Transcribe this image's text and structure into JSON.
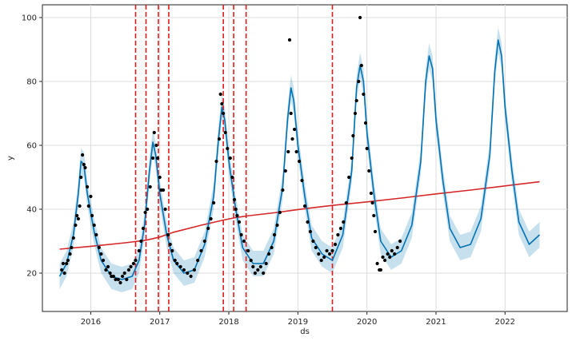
{
  "chart_data": {
    "type": "line",
    "title": "",
    "xlabel": "ds",
    "ylabel": "y",
    "xlim": [
      2015.3,
      2022.9
    ],
    "ylim": [
      8,
      104
    ],
    "grid": true,
    "x_ticks": [
      2016,
      2017,
      2018,
      2019,
      2020,
      2021,
      2022
    ],
    "x_tick_labels": [
      "2016",
      "2017",
      "2018",
      "2019",
      "2020",
      "2021",
      "2022"
    ],
    "y_ticks": [
      20,
      40,
      60,
      80,
      100
    ],
    "y_tick_labels": [
      "20",
      "40",
      "60",
      "80",
      "100"
    ],
    "changepoints": [
      2016.65,
      2016.8,
      2016.98,
      2017.13,
      2017.92,
      2018.07,
      2018.25,
      2019.5
    ],
    "trend": {
      "x": [
        2015.55,
        2016.0,
        2016.5,
        2016.8,
        2017.0,
        2017.2,
        2017.6,
        2017.9,
        2018.1,
        2018.3,
        2018.7,
        2019.0,
        2019.5,
        2020.0,
        2020.5,
        2021.0,
        2021.5,
        2022.0,
        2022.5
      ],
      "y": [
        27.5,
        28.4,
        29.5,
        30.3,
        31.3,
        32.8,
        35.0,
        36.5,
        37.4,
        38.0,
        39.0,
        39.9,
        41.2,
        42.3,
        43.5,
        44.8,
        46.0,
        47.3,
        48.6
      ]
    },
    "forecast": {
      "x": [
        2015.55,
        2015.65,
        2015.75,
        2015.82,
        2015.86,
        2015.9,
        2015.95,
        2016.05,
        2016.15,
        2016.3,
        2016.45,
        2016.6,
        2016.7,
        2016.78,
        2016.85,
        2016.9,
        2016.94,
        2017.0,
        2017.1,
        2017.2,
        2017.35,
        2017.5,
        2017.65,
        2017.78,
        2017.85,
        2017.9,
        2017.94,
        2018.0,
        2018.1,
        2018.2,
        2018.35,
        2018.5,
        2018.65,
        2018.78,
        2018.85,
        2018.9,
        2018.94,
        2019.0,
        2019.1,
        2019.2,
        2019.35,
        2019.5,
        2019.65,
        2019.78,
        2019.85,
        2019.9,
        2019.95,
        2020.0,
        2020.1,
        2020.2,
        2020.35,
        2020.5,
        2020.65,
        2020.78,
        2020.85,
        2020.9,
        2020.95,
        2021.0,
        2021.1,
        2021.2,
        2021.35,
        2021.5,
        2021.65,
        2021.78,
        2021.85,
        2021.9,
        2021.95,
        2022.0,
        2022.1,
        2022.2,
        2022.35,
        2022.5
      ],
      "y": [
        19,
        23,
        32,
        45,
        55,
        54,
        45,
        33,
        24,
        19,
        18,
        19,
        24,
        35,
        52,
        61,
        57,
        45,
        32,
        24,
        20,
        21,
        29,
        44,
        62,
        72,
        68,
        55,
        40,
        28,
        23,
        23,
        30,
        47,
        68,
        78,
        74,
        60,
        44,
        31,
        26,
        24,
        32,
        52,
        78,
        85,
        80,
        64,
        45,
        30,
        25,
        27,
        35,
        55,
        80,
        88,
        84,
        68,
        49,
        34,
        28,
        29,
        37,
        57,
        83,
        93,
        88,
        72,
        52,
        36,
        29,
        32
      ],
      "band": 4
    },
    "observed": [
      [
        2015.58,
        21
      ],
      [
        2015.6,
        23
      ],
      [
        2015.62,
        20
      ],
      [
        2015.65,
        23
      ],
      [
        2015.67,
        24
      ],
      [
        2015.7,
        26
      ],
      [
        2015.72,
        28
      ],
      [
        2015.75,
        31
      ],
      [
        2015.78,
        35
      ],
      [
        2015.8,
        38
      ],
      [
        2015.82,
        37
      ],
      [
        2015.84,
        41
      ],
      [
        2015.86,
        50
      ],
      [
        2015.88,
        57
      ],
      [
        2015.9,
        54
      ],
      [
        2015.92,
        53
      ],
      [
        2015.95,
        47
      ],
      [
        2015.97,
        41
      ],
      [
        2016.0,
        44
      ],
      [
        2016.02,
        38
      ],
      [
        2016.05,
        35
      ],
      [
        2016.08,
        32
      ],
      [
        2016.12,
        28
      ],
      [
        2016.15,
        26
      ],
      [
        2016.18,
        24
      ],
      [
        2016.22,
        21
      ],
      [
        2016.25,
        22
      ],
      [
        2016.28,
        20
      ],
      [
        2016.3,
        19
      ],
      [
        2016.33,
        19
      ],
      [
        2016.36,
        18
      ],
      [
        2016.4,
        18
      ],
      [
        2016.43,
        17
      ],
      [
        2016.46,
        19
      ],
      [
        2016.49,
        20
      ],
      [
        2016.52,
        18
      ],
      [
        2016.55,
        21
      ],
      [
        2016.58,
        22
      ],
      [
        2016.62,
        23
      ],
      [
        2016.65,
        24
      ],
      [
        2016.7,
        27
      ],
      [
        2016.73,
        30
      ],
      [
        2016.76,
        34
      ],
      [
        2016.79,
        39
      ],
      [
        2016.82,
        40
      ],
      [
        2016.86,
        47
      ],
      [
        2016.9,
        56
      ],
      [
        2016.92,
        64
      ],
      [
        2016.95,
        60
      ],
      [
        2016.97,
        56
      ],
      [
        2017.0,
        50
      ],
      [
        2017.02,
        46
      ],
      [
        2017.05,
        46
      ],
      [
        2017.08,
        40
      ],
      [
        2017.12,
        32
      ],
      [
        2017.15,
        29
      ],
      [
        2017.18,
        27
      ],
      [
        2017.22,
        24
      ],
      [
        2017.25,
        23
      ],
      [
        2017.3,
        22
      ],
      [
        2017.35,
        21
      ],
      [
        2017.4,
        20
      ],
      [
        2017.45,
        19
      ],
      [
        2017.5,
        21
      ],
      [
        2017.55,
        24
      ],
      [
        2017.6,
        27
      ],
      [
        2017.65,
        30
      ],
      [
        2017.7,
        34
      ],
      [
        2017.74,
        37
      ],
      [
        2017.78,
        42
      ],
      [
        2017.82,
        55
      ],
      [
        2017.86,
        62
      ],
      [
        2017.88,
        76
      ],
      [
        2017.9,
        73
      ],
      [
        2017.92,
        70
      ],
      [
        2017.95,
        64
      ],
      [
        2017.98,
        59
      ],
      [
        2018.02,
        56
      ],
      [
        2018.05,
        50
      ],
      [
        2018.08,
        43
      ],
      [
        2018.1,
        40
      ],
      [
        2018.12,
        38
      ],
      [
        2018.15,
        36
      ],
      [
        2018.18,
        32
      ],
      [
        2018.22,
        30
      ],
      [
        2018.28,
        27
      ],
      [
        2018.32,
        24
      ],
      [
        2018.35,
        22
      ],
      [
        2018.38,
        20
      ],
      [
        2018.42,
        21
      ],
      [
        2018.46,
        22
      ],
      [
        2018.5,
        20
      ],
      [
        2018.54,
        23
      ],
      [
        2018.58,
        26
      ],
      [
        2018.62,
        28
      ],
      [
        2018.66,
        32
      ],
      [
        2018.7,
        35
      ],
      [
        2018.74,
        39
      ],
      [
        2018.78,
        46
      ],
      [
        2018.82,
        52
      ],
      [
        2018.86,
        58
      ],
      [
        2018.88,
        93
      ],
      [
        2018.9,
        70
      ],
      [
        2018.92,
        62
      ],
      [
        2018.95,
        65
      ],
      [
        2018.98,
        58
      ],
      [
        2019.02,
        55
      ],
      [
        2019.06,
        49
      ],
      [
        2019.1,
        41
      ],
      [
        2019.14,
        36
      ],
      [
        2019.18,
        33
      ],
      [
        2019.22,
        30
      ],
      [
        2019.26,
        28
      ],
      [
        2019.3,
        26
      ],
      [
        2019.34,
        24
      ],
      [
        2019.38,
        25
      ],
      [
        2019.42,
        27
      ],
      [
        2019.46,
        26
      ],
      [
        2019.5,
        27
      ],
      [
        2019.54,
        29
      ],
      [
        2019.58,
        32
      ],
      [
        2019.62,
        34
      ],
      [
        2019.66,
        36
      ],
      [
        2019.7,
        42
      ],
      [
        2019.74,
        50
      ],
      [
        2019.78,
        56
      ],
      [
        2019.8,
        63
      ],
      [
        2019.83,
        70
      ],
      [
        2019.85,
        74
      ],
      [
        2019.88,
        80
      ],
      [
        2019.9,
        100
      ],
      [
        2019.92,
        85
      ],
      [
        2019.95,
        76
      ],
      [
        2019.98,
        67
      ],
      [
        2020.0,
        59
      ],
      [
        2020.03,
        52
      ],
      [
        2020.06,
        45
      ],
      [
        2020.08,
        42
      ],
      [
        2020.1,
        38
      ],
      [
        2020.12,
        33
      ],
      [
        2020.15,
        23
      ],
      [
        2020.18,
        21
      ],
      [
        2020.2,
        21
      ],
      [
        2020.23,
        25
      ],
      [
        2020.26,
        24
      ],
      [
        2020.3,
        26
      ],
      [
        2020.33,
        25
      ],
      [
        2020.36,
        27
      ],
      [
        2020.4,
        26
      ],
      [
        2020.44,
        28
      ],
      [
        2020.48,
        30
      ]
    ]
  }
}
